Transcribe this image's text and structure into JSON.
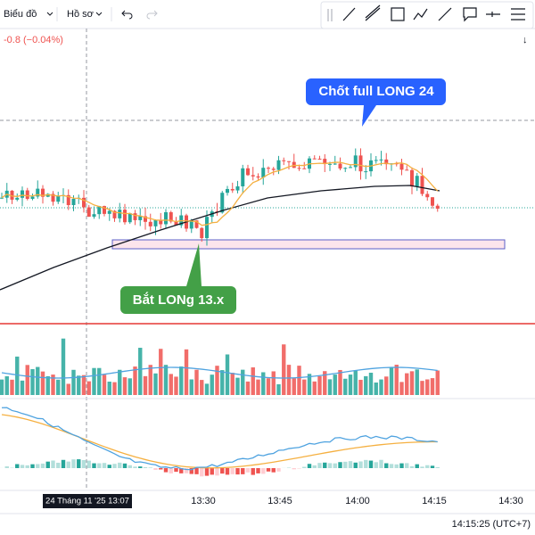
{
  "toolbar": {
    "chart_menu": "Biểu đồ",
    "profile_menu": "Hồ sơ"
  },
  "price_change": "-0.8 (−0.04%)",
  "annotations": {
    "sell": "Chốt full LONG 24",
    "buy": "Bắt LONg 13.x"
  },
  "time_axis": {
    "labels": [
      "13:30",
      "13:45",
      "14:00",
      "14:15",
      "14:30"
    ],
    "crosshair_label": "24 Tháng 11 '25   13:07"
  },
  "clock": "14:15:25 (UTC+7)"
}
